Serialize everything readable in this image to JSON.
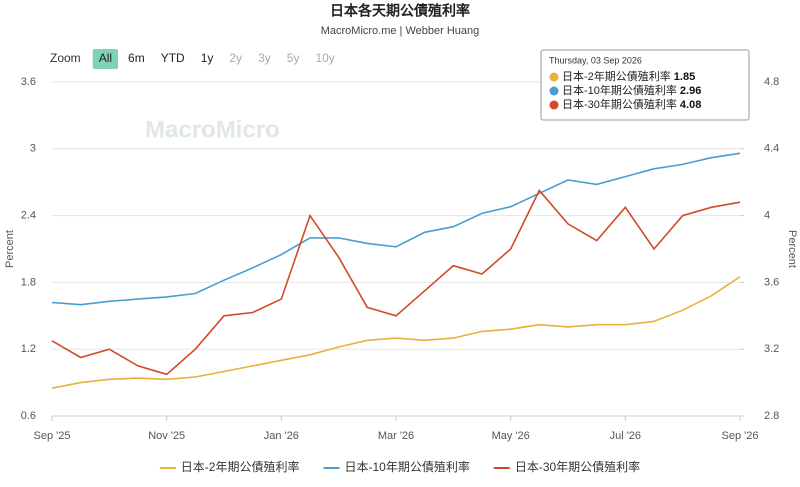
{
  "chart_data": {
    "type": "line",
    "title": "日本各天期公債殖利率",
    "subtitle": "MacroMicro.me | Webber Huang",
    "watermark": "MacroMicro",
    "range_buttons": [
      "Zoom",
      "All",
      "6m",
      "YTD",
      "1y",
      "2y",
      "3y",
      "5y",
      "10y"
    ],
    "y_label": "Percent",
    "y2_label": "Percent",
    "x": [
      0,
      0.5,
      1,
      1.5,
      2,
      2.5,
      3,
      3.5,
      4,
      4.5,
      5,
      5.5,
      6,
      6.5,
      7,
      7.5,
      8,
      8.5,
      9,
      9.5,
      10,
      10.5,
      11,
      11.5,
      12
    ],
    "xlim": [
      0,
      12
    ],
    "xticks": [
      {
        "value": 0,
        "label": "Sep '25"
      },
      {
        "value": 2,
        "label": "Nov '25"
      },
      {
        "value": 4,
        "label": "Jan '26"
      },
      {
        "value": 6,
        "label": "Mar '26"
      },
      {
        "value": 8,
        "label": "May '26"
      },
      {
        "value": 10,
        "label": "Jul '26"
      },
      {
        "value": 12,
        "label": "Sep '26"
      }
    ],
    "ylim": [
      0.6,
      3.6
    ],
    "yticks": [
      0.6,
      1.2,
      1.8,
      2.4,
      3,
      3.6
    ],
    "y2lim": [
      2.8,
      4.8
    ],
    "y2ticks": [
      2.8,
      3.2,
      3.6,
      4,
      4.4,
      4.8
    ],
    "series": [
      {
        "name": "日本-2年期公債殖利率",
        "color": "#e8b03c",
        "values": [
          0.85,
          0.9,
          0.93,
          0.94,
          0.93,
          0.95,
          1.0,
          1.05,
          1.1,
          1.15,
          1.22,
          1.28,
          1.3,
          1.28,
          1.3,
          1.36,
          1.38,
          1.42,
          1.4,
          1.42,
          1.42,
          1.45,
          1.55,
          1.68,
          1.85
        ]
      },
      {
        "name": "日本-10年期公債殖利率",
        "color": "#4a9ecf",
        "values": [
          1.62,
          1.6,
          1.63,
          1.65,
          1.67,
          1.7,
          1.82,
          1.93,
          2.05,
          2.2,
          2.2,
          2.15,
          2.12,
          2.25,
          2.3,
          2.42,
          2.48,
          2.6,
          2.72,
          2.68,
          2.75,
          2.82,
          2.86,
          2.92,
          2.96
        ]
      },
      {
        "name": "日本-30年期公債殖利率",
        "color": "#d2492a",
        "axis": "y2",
        "values": [
          3.25,
          3.15,
          3.2,
          3.1,
          3.05,
          3.2,
          3.4,
          3.42,
          3.5,
          4.0,
          3.75,
          3.45,
          3.4,
          3.55,
          3.7,
          3.65,
          3.8,
          4.15,
          3.95,
          3.85,
          4.05,
          3.8,
          4.0,
          4.05,
          4.08
        ]
      }
    ],
    "tooltip_date": "Thursday, 03 Sep 2026"
  }
}
